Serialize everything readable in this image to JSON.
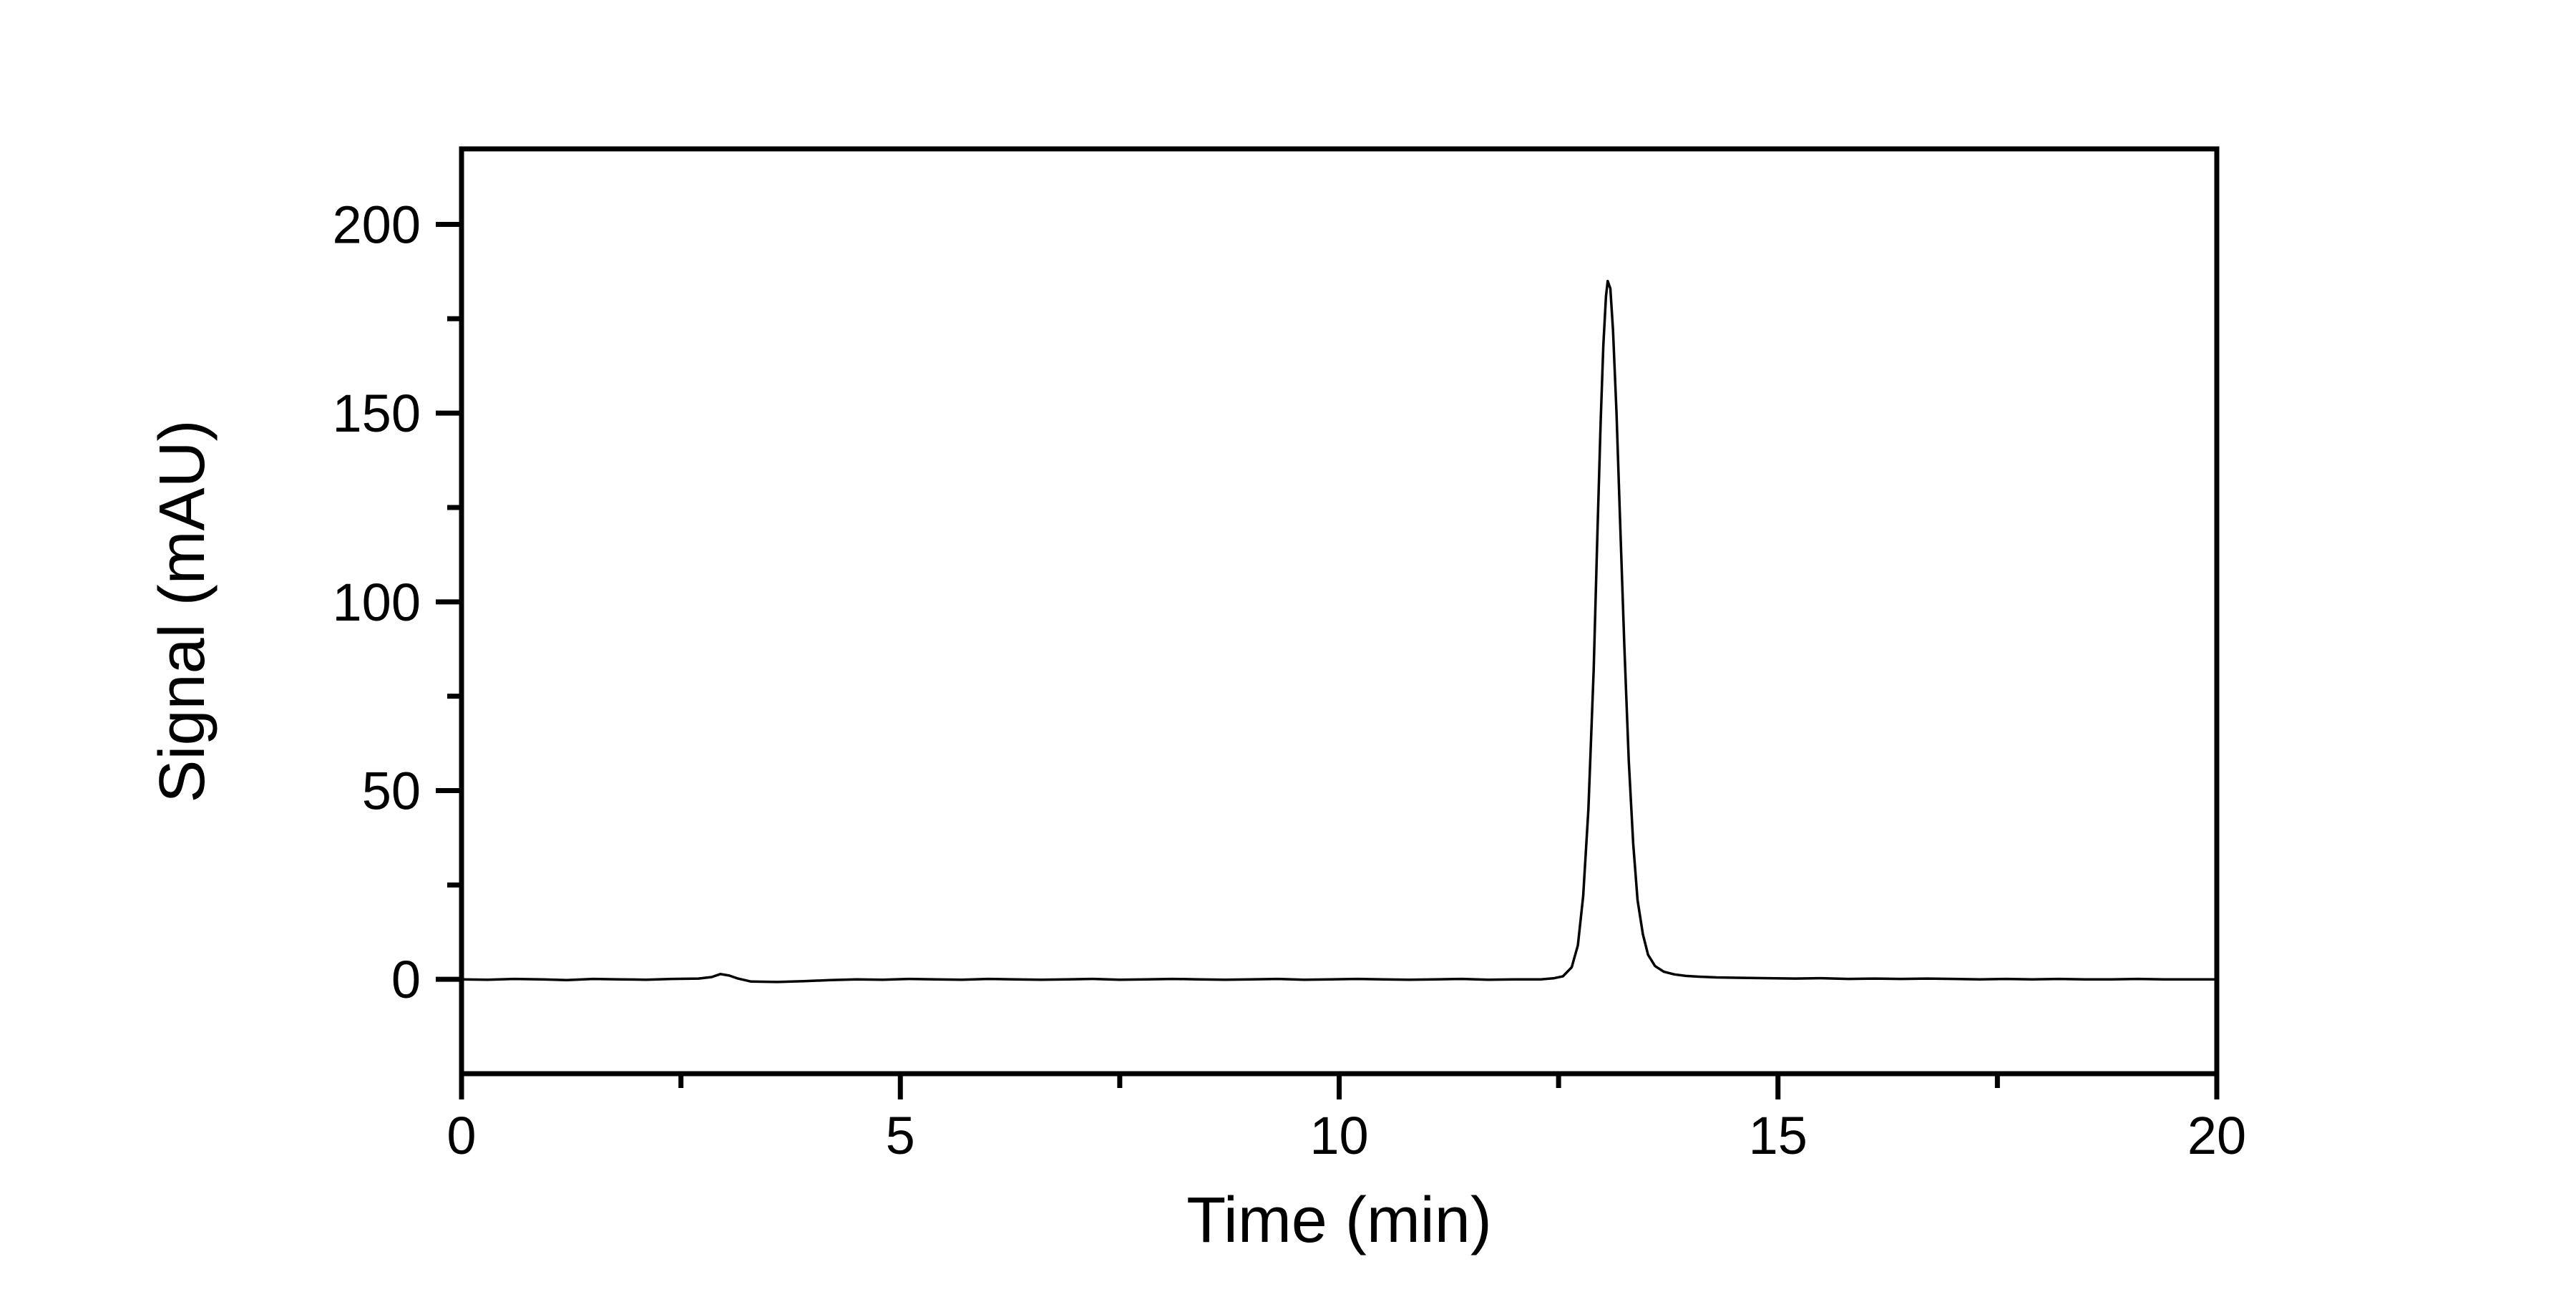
{
  "figure": {
    "background_color": "#ffffff",
    "axis_color": "#000000",
    "trace_color": "#000000"
  },
  "chart_data": {
    "type": "line",
    "title": "",
    "xlabel": "Time (min)",
    "ylabel": "Signal (mAU)",
    "xlim": [
      0,
      20
    ],
    "ylim": [
      -25,
      220
    ],
    "grid": false,
    "legend_position": "none",
    "x_major_ticks": [
      0,
      5,
      10,
      15,
      20
    ],
    "x_tick_labels": [
      "0",
      "5",
      "10",
      "15",
      "20"
    ],
    "x_minor_ticks": [
      2.5,
      7.5,
      12.5,
      17.5
    ],
    "y_major_ticks": [
      200,
      150,
      100,
      50,
      0
    ],
    "y_tick_labels": [
      "200",
      "150",
      "100",
      "50",
      "0"
    ],
    "y_minor_ticks": [
      175,
      125,
      75,
      25
    ],
    "series": [
      {
        "name": "chromatogram-trace",
        "color": "#000000",
        "points": [
          [
            0.0,
            0.0
          ],
          [
            0.3,
            -0.1
          ],
          [
            0.6,
            0.1
          ],
          [
            0.9,
            0.0
          ],
          [
            1.2,
            -0.2
          ],
          [
            1.5,
            0.1
          ],
          [
            1.8,
            0.0
          ],
          [
            2.1,
            -0.1
          ],
          [
            2.4,
            0.1
          ],
          [
            2.7,
            0.2
          ],
          [
            2.85,
            0.6
          ],
          [
            2.95,
            1.4
          ],
          [
            3.05,
            1.0
          ],
          [
            3.15,
            0.2
          ],
          [
            3.3,
            -0.6
          ],
          [
            3.6,
            -0.7
          ],
          [
            3.9,
            -0.5
          ],
          [
            4.2,
            -0.2
          ],
          [
            4.5,
            0.0
          ],
          [
            4.8,
            -0.1
          ],
          [
            5.1,
            0.1
          ],
          [
            5.4,
            0.0
          ],
          [
            5.7,
            -0.1
          ],
          [
            6.0,
            0.1
          ],
          [
            6.3,
            0.0
          ],
          [
            6.6,
            -0.1
          ],
          [
            6.9,
            0.0
          ],
          [
            7.2,
            0.1
          ],
          [
            7.5,
            -0.1
          ],
          [
            7.8,
            0.0
          ],
          [
            8.1,
            0.1
          ],
          [
            8.4,
            0.0
          ],
          [
            8.7,
            -0.1
          ],
          [
            9.0,
            0.0
          ],
          [
            9.3,
            0.1
          ],
          [
            9.6,
            -0.1
          ],
          [
            9.9,
            0.0
          ],
          [
            10.2,
            0.1
          ],
          [
            10.5,
            0.0
          ],
          [
            10.8,
            -0.1
          ],
          [
            11.1,
            0.0
          ],
          [
            11.4,
            0.1
          ],
          [
            11.7,
            -0.1
          ],
          [
            12.0,
            0.0
          ],
          [
            12.3,
            0.0
          ],
          [
            12.45,
            0.3
          ],
          [
            12.55,
            0.8
          ],
          [
            12.65,
            3.2
          ],
          [
            12.72,
            9.0
          ],
          [
            12.78,
            22.0
          ],
          [
            12.84,
            45.0
          ],
          [
            12.9,
            82.0
          ],
          [
            12.94,
            116.0
          ],
          [
            12.98,
            148.0
          ],
          [
            13.01,
            168.0
          ],
          [
            13.04,
            181.0
          ],
          [
            13.06,
            185.0
          ],
          [
            13.09,
            183.0
          ],
          [
            13.12,
            172.0
          ],
          [
            13.16,
            150.0
          ],
          [
            13.2,
            122.0
          ],
          [
            13.25,
            88.0
          ],
          [
            13.3,
            58.0
          ],
          [
            13.35,
            36.0
          ],
          [
            13.4,
            21.0
          ],
          [
            13.46,
            12.0
          ],
          [
            13.52,
            6.5
          ],
          [
            13.6,
            3.5
          ],
          [
            13.7,
            2.0
          ],
          [
            13.82,
            1.3
          ],
          [
            13.95,
            0.9
          ],
          [
            14.1,
            0.7
          ],
          [
            14.3,
            0.5
          ],
          [
            14.6,
            0.4
          ],
          [
            14.9,
            0.3
          ],
          [
            15.2,
            0.2
          ],
          [
            15.5,
            0.3
          ],
          [
            15.8,
            0.1
          ],
          [
            16.1,
            0.2
          ],
          [
            16.4,
            0.1
          ],
          [
            16.7,
            0.2
          ],
          [
            17.0,
            0.1
          ],
          [
            17.3,
            0.0
          ],
          [
            17.6,
            0.1
          ],
          [
            17.9,
            0.0
          ],
          [
            18.2,
            0.1
          ],
          [
            18.5,
            0.0
          ],
          [
            18.8,
            0.0
          ],
          [
            19.1,
            0.1
          ],
          [
            19.4,
            0.0
          ],
          [
            19.7,
            0.0
          ],
          [
            20.0,
            0.0
          ]
        ]
      }
    ]
  }
}
